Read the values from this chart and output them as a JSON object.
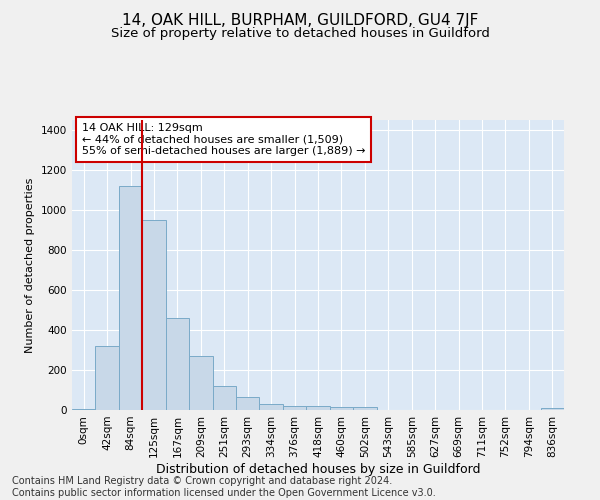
{
  "title": "14, OAK HILL, BURPHAM, GUILDFORD, GU4 7JF",
  "subtitle": "Size of property relative to detached houses in Guildford",
  "xlabel": "Distribution of detached houses by size in Guildford",
  "ylabel": "Number of detached properties",
  "categories": [
    "0sqm",
    "42sqm",
    "84sqm",
    "125sqm",
    "167sqm",
    "209sqm",
    "251sqm",
    "293sqm",
    "334sqm",
    "376sqm",
    "418sqm",
    "460sqm",
    "502sqm",
    "543sqm",
    "585sqm",
    "627sqm",
    "669sqm",
    "711sqm",
    "752sqm",
    "794sqm",
    "836sqm"
  ],
  "values": [
    3,
    320,
    1120,
    950,
    460,
    270,
    120,
    65,
    30,
    20,
    18,
    17,
    15,
    0,
    0,
    0,
    0,
    0,
    0,
    0,
    8
  ],
  "bar_color": "#c8d8e8",
  "bar_edge_color": "#7aaac8",
  "vline_x": 3,
  "vline_color": "#cc0000",
  "annotation_text": "14 OAK HILL: 129sqm\n← 44% of detached houses are smaller (1,509)\n55% of semi-detached houses are larger (1,889) →",
  "annotation_box_color": "#ffffff",
  "annotation_box_edge": "#cc0000",
  "fig_background_color": "#f0f0f0",
  "plot_background": "#dce8f5",
  "footer_line1": "Contains HM Land Registry data © Crown copyright and database right 2024.",
  "footer_line2": "Contains public sector information licensed under the Open Government Licence v3.0.",
  "ylim": [
    0,
    1450
  ],
  "yticks": [
    0,
    200,
    400,
    600,
    800,
    1000,
    1200,
    1400
  ],
  "title_fontsize": 11,
  "subtitle_fontsize": 9.5,
  "xlabel_fontsize": 9,
  "ylabel_fontsize": 8,
  "tick_fontsize": 7.5,
  "footer_fontsize": 7,
  "annot_fontsize": 8
}
